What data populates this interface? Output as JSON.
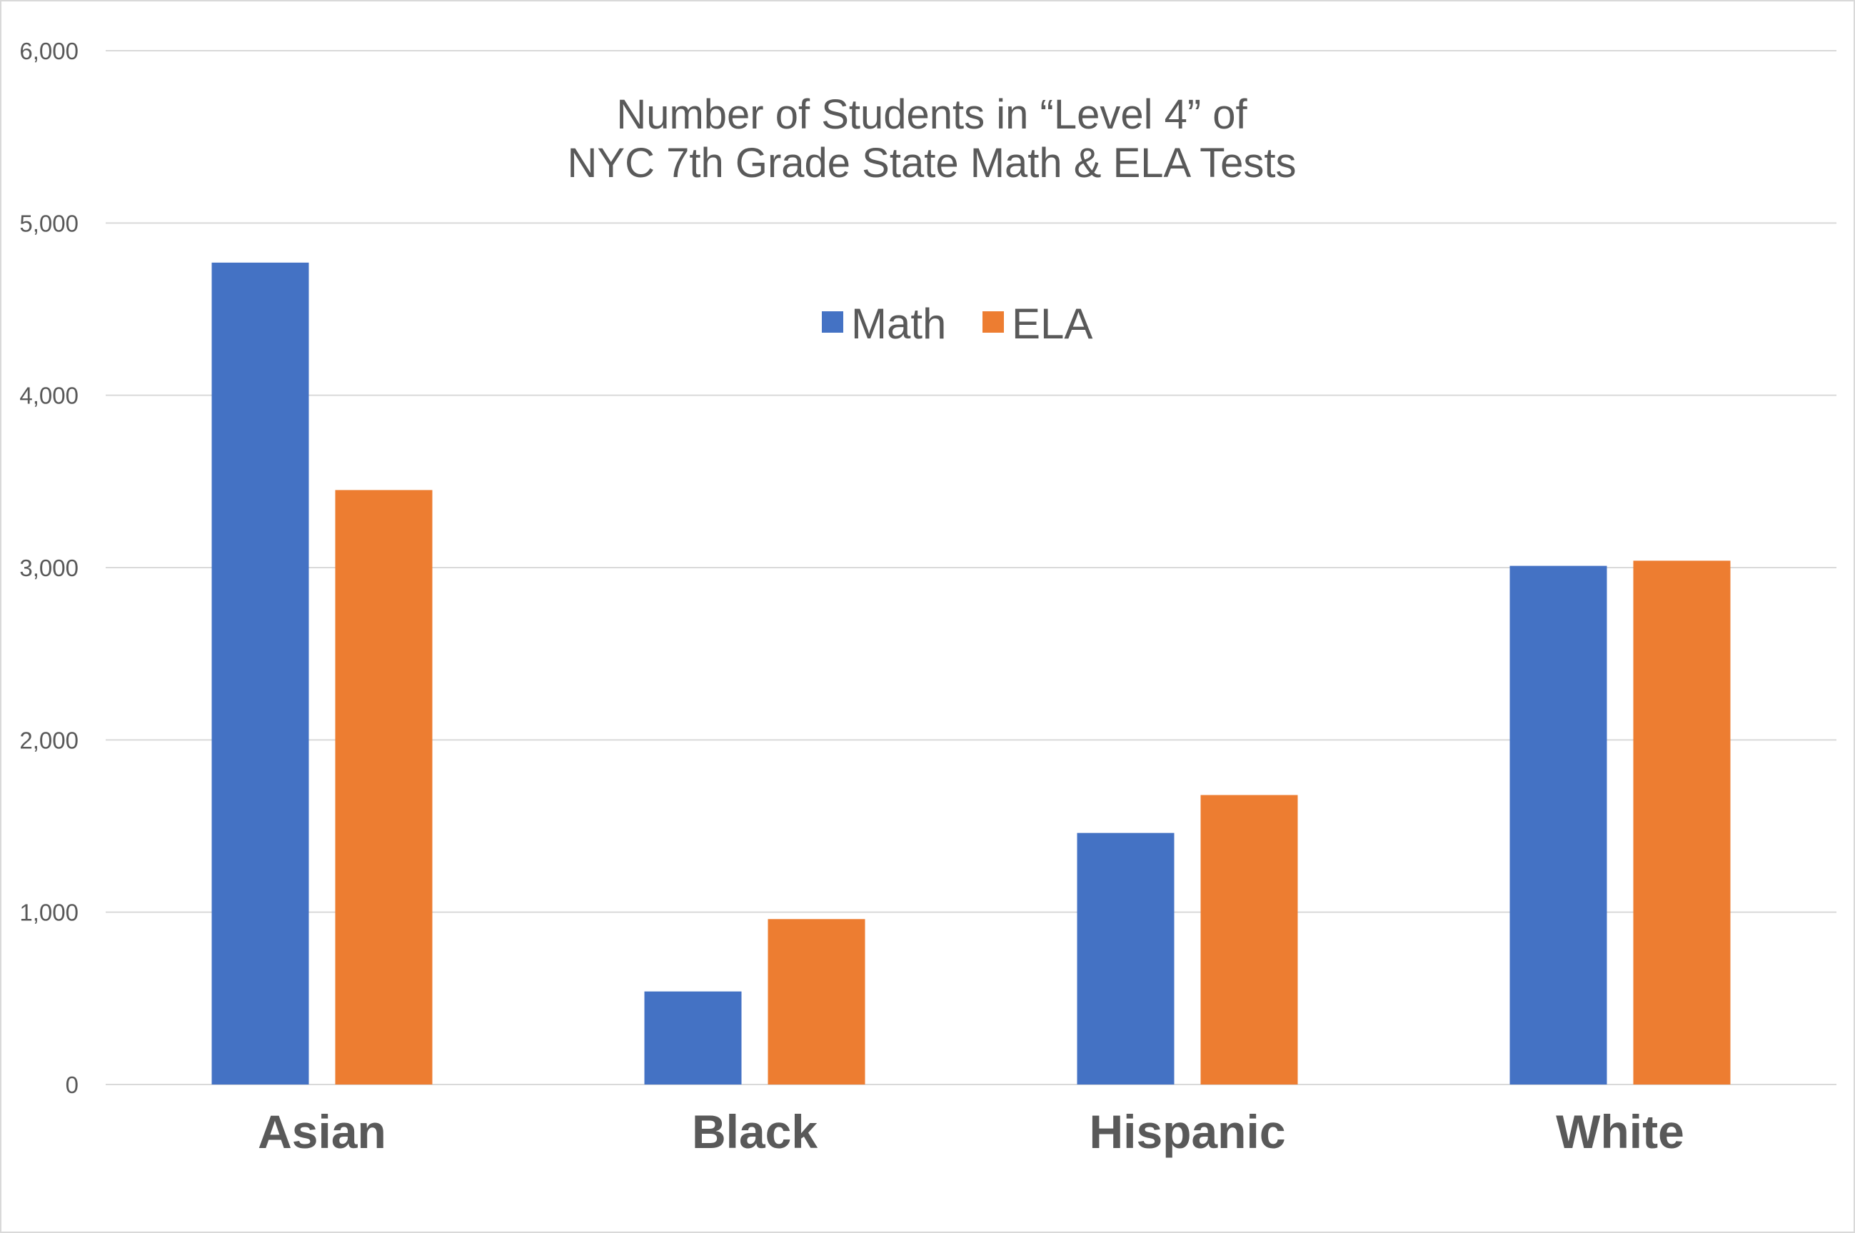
{
  "chart_data": {
    "type": "bar",
    "title_lines": [
      "Number of Students in “Level 4” of",
      "NYC 7th Grade State Math & ELA Tests"
    ],
    "xlabel": "",
    "ylabel": "",
    "categories": [
      "Asian",
      "Black",
      "Hispanic",
      "White"
    ],
    "series": [
      {
        "name": "Math",
        "color": "#4472c4",
        "values": [
          4770,
          540,
          1460,
          3010
        ]
      },
      {
        "name": "ELA",
        "color": "#ed7d31",
        "values": [
          3450,
          960,
          1680,
          3040
        ]
      }
    ],
    "ylim": [
      0,
      6000
    ],
    "yticks": [
      0,
      1000,
      2000,
      3000,
      4000,
      5000,
      6000
    ],
    "ytick_labels": [
      "0",
      "1,000",
      "2,000",
      "3,000",
      "4,000",
      "5,000",
      "6,000"
    ],
    "grid": true,
    "legend_position": "top-center",
    "colors": {
      "gridline": "#d9d9d9",
      "text": "#595959",
      "border": "#d9d9d9"
    }
  }
}
